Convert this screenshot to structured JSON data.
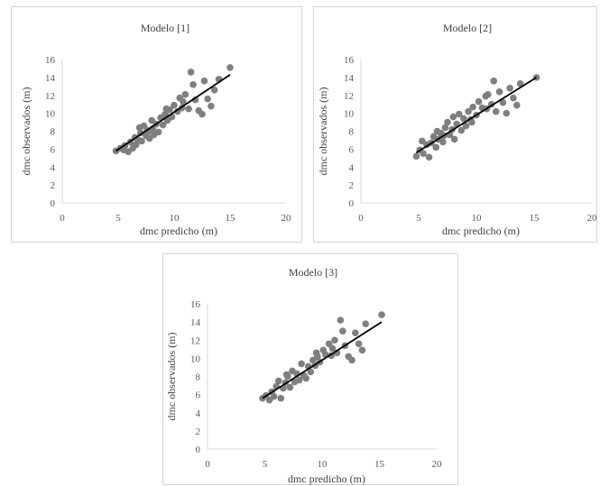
{
  "chart_data": [
    {
      "type": "scatter",
      "title": "Modelo  [1]",
      "xlabel": "dmc predicho (m)",
      "ylabel": "dmc observados (m)",
      "xlim": [
        0,
        20
      ],
      "ylim": [
        0,
        16
      ],
      "xticks": [
        "0",
        "5",
        "10",
        "15",
        "20"
      ],
      "yticks": [
        "0",
        "2",
        "4",
        "6",
        "8",
        "10",
        "12",
        "14",
        "16"
      ],
      "grid": false,
      "trendline": {
        "x": [
          4.8,
          15.0
        ],
        "y": [
          5.8,
          14.3
        ]
      },
      "series": [
        {
          "marker_color": "#7f7f7f",
          "points": [
            [
              4.8,
              5.8
            ],
            [
              5.2,
              6.1
            ],
            [
              5.5,
              5.9
            ],
            [
              5.6,
              6.4
            ],
            [
              5.9,
              5.7
            ],
            [
              6.1,
              6.8
            ],
            [
              6.3,
              6.1
            ],
            [
              6.5,
              7.3
            ],
            [
              6.6,
              6.5
            ],
            [
              6.8,
              7.0
            ],
            [
              7.0,
              7.8
            ],
            [
              7.1,
              6.9
            ],
            [
              7.3,
              8.6
            ],
            [
              7.5,
              7.5
            ],
            [
              7.6,
              8.1
            ],
            [
              7.8,
              7.2
            ],
            [
              8.0,
              9.2
            ],
            [
              8.1,
              8.3
            ],
            [
              8.2,
              7.6
            ],
            [
              8.4,
              8.8
            ],
            [
              8.6,
              7.9
            ],
            [
              8.8,
              9.5
            ],
            [
              9.0,
              8.7
            ],
            [
              9.2,
              9.9
            ],
            [
              9.4,
              9.2
            ],
            [
              9.6,
              10.4
            ],
            [
              9.8,
              9.6
            ],
            [
              10.0,
              10.9
            ],
            [
              10.3,
              10.2
            ],
            [
              10.5,
              11.7
            ],
            [
              10.8,
              11.3
            ],
            [
              11.0,
              12.1
            ],
            [
              11.3,
              10.5
            ],
            [
              11.5,
              14.6
            ],
            [
              11.7,
              13.2
            ],
            [
              11.9,
              11.5
            ],
            [
              12.2,
              10.3
            ],
            [
              12.5,
              9.9
            ],
            [
              12.7,
              13.6
            ],
            [
              13.0,
              11.6
            ],
            [
              13.3,
              10.8
            ],
            [
              13.6,
              12.6
            ],
            [
              14.0,
              13.8
            ],
            [
              15.0,
              15.1
            ],
            [
              6.9,
              8.4
            ],
            [
              7.9,
              8.0
            ],
            [
              9.3,
              10.5
            ],
            [
              10.7,
              10.6
            ]
          ]
        }
      ]
    },
    {
      "type": "scatter",
      "title": "Modelo [2]",
      "xlabel": "dmc predicho (m)",
      "ylabel": "dmc observados (m)",
      "xlim": [
        0,
        20
      ],
      "ylim": [
        0,
        16
      ],
      "xticks": [
        "0",
        "5",
        "10",
        "15",
        "20"
      ],
      "yticks": [
        "0",
        "2",
        "4",
        "6",
        "8",
        "10",
        "12",
        "14",
        "16"
      ],
      "grid": false,
      "trendline": {
        "x": [
          4.8,
          15.2
        ],
        "y": [
          5.6,
          14.0
        ]
      },
      "series": [
        {
          "marker_color": "#7f7f7f",
          "points": [
            [
              4.8,
              5.2
            ],
            [
              5.1,
              5.9
            ],
            [
              5.4,
              5.5
            ],
            [
              5.7,
              6.5
            ],
            [
              5.9,
              5.1
            ],
            [
              6.1,
              6.7
            ],
            [
              6.3,
              7.4
            ],
            [
              6.5,
              6.2
            ],
            [
              6.7,
              7.1
            ],
            [
              6.9,
              7.8
            ],
            [
              7.1,
              6.8
            ],
            [
              7.3,
              8.4
            ],
            [
              7.5,
              9.0
            ],
            [
              7.7,
              7.6
            ],
            [
              7.9,
              8.2
            ],
            [
              8.1,
              7.1
            ],
            [
              8.3,
              8.8
            ],
            [
              8.5,
              9.9
            ],
            [
              8.7,
              8.1
            ],
            [
              8.9,
              9.4
            ],
            [
              9.1,
              8.6
            ],
            [
              9.3,
              10.2
            ],
            [
              9.5,
              9.3
            ],
            [
              9.7,
              10.7
            ],
            [
              10.0,
              9.8
            ],
            [
              10.2,
              11.3
            ],
            [
              10.5,
              10.6
            ],
            [
              10.8,
              11.9
            ],
            [
              11.0,
              12.1
            ],
            [
              11.3,
              11.0
            ],
            [
              11.5,
              13.6
            ],
            [
              11.7,
              10.2
            ],
            [
              12.0,
              12.4
            ],
            [
              12.3,
              11.2
            ],
            [
              12.6,
              10.0
            ],
            [
              12.9,
              12.8
            ],
            [
              13.2,
              11.7
            ],
            [
              13.5,
              10.9
            ],
            [
              13.8,
              13.3
            ],
            [
              15.2,
              14.0
            ],
            [
              6.6,
              8.0
            ],
            [
              8.0,
              9.6
            ],
            [
              9.6,
              9.0
            ],
            [
              10.9,
              10.5
            ],
            [
              7.2,
              7.5
            ],
            [
              5.3,
              6.9
            ]
          ]
        }
      ]
    },
    {
      "type": "scatter",
      "title": "Modelo [3]",
      "xlabel": "dmc predicho (m)",
      "ylabel": "dmc observados (m)",
      "xlim": [
        0,
        20
      ],
      "ylim": [
        0,
        16
      ],
      "xticks": [
        "0",
        "5",
        "10",
        "15",
        "20"
      ],
      "yticks": [
        "0",
        "2",
        "4",
        "6",
        "8",
        "10",
        "12",
        "14",
        "16"
      ],
      "grid": false,
      "trendline": {
        "x": [
          4.8,
          15.2
        ],
        "y": [
          5.6,
          14.0
        ]
      },
      "series": [
        {
          "marker_color": "#7f7f7f",
          "points": [
            [
              4.8,
              5.6
            ],
            [
              5.1,
              5.9
            ],
            [
              5.4,
              5.4
            ],
            [
              5.6,
              6.3
            ],
            [
              5.8,
              5.8
            ],
            [
              6.0,
              6.9
            ],
            [
              6.2,
              7.5
            ],
            [
              6.4,
              5.6
            ],
            [
              6.6,
              6.7
            ],
            [
              6.8,
              7.3
            ],
            [
              7.0,
              8.0
            ],
            [
              7.2,
              6.8
            ],
            [
              7.4,
              8.6
            ],
            [
              7.6,
              7.4
            ],
            [
              7.8,
              8.3
            ],
            [
              8.0,
              7.6
            ],
            [
              8.2,
              9.4
            ],
            [
              8.4,
              8.1
            ],
            [
              8.6,
              7.8
            ],
            [
              8.8,
              9.1
            ],
            [
              9.0,
              8.5
            ],
            [
              9.2,
              9.8
            ],
            [
              9.4,
              9.2
            ],
            [
              9.6,
              10.2
            ],
            [
              9.8,
              9.6
            ],
            [
              10.1,
              10.9
            ],
            [
              10.3,
              10.4
            ],
            [
              10.6,
              11.6
            ],
            [
              10.9,
              11.1
            ],
            [
              11.1,
              12.0
            ],
            [
              11.3,
              10.6
            ],
            [
              11.6,
              14.2
            ],
            [
              11.8,
              13.0
            ],
            [
              12.0,
              11.4
            ],
            [
              12.3,
              10.2
            ],
            [
              12.6,
              9.8
            ],
            [
              12.9,
              12.8
            ],
            [
              13.2,
              11.6
            ],
            [
              13.5,
              10.9
            ],
            [
              13.8,
              13.8
            ],
            [
              15.2,
              14.8
            ],
            [
              6.9,
              8.2
            ],
            [
              9.5,
              10.6
            ],
            [
              10.8,
              10.3
            ]
          ]
        }
      ]
    }
  ]
}
